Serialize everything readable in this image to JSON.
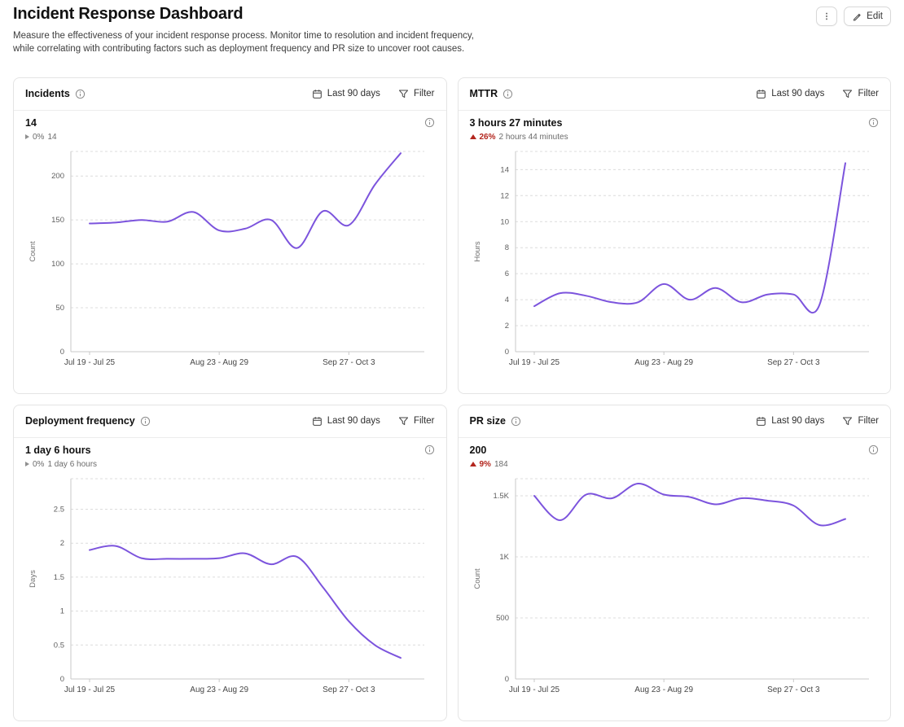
{
  "header": {
    "title": "Incident Response Dashboard",
    "description": "Measure the effectiveness of your incident response process. Monitor time to resolution and incident frequency, while correlating with contributing factors such as deployment frequency and PR size to uncover root causes.",
    "edit_label": "Edit"
  },
  "colors": {
    "accent_line": "#7c54dd",
    "negative": "#b3261e",
    "grid": "#dcdcdc",
    "axis": "#c9c9c9"
  },
  "panels": [
    {
      "title": "Incidents",
      "date_range": "Last 90 days",
      "filter_label": "Filter",
      "stat": {
        "value": "14",
        "change_direction": "neutral",
        "change_percent": "0%",
        "change_comparison": "14"
      }
    },
    {
      "title": "MTTR",
      "date_range": "Last 90 days",
      "filter_label": "Filter",
      "stat": {
        "value": "3 hours 27 minutes",
        "change_direction": "up-bad",
        "change_percent": "26%",
        "change_comparison": "2 hours 44 minutes"
      }
    },
    {
      "title": "Deployment frequency",
      "date_range": "Last 90 days",
      "filter_label": "Filter",
      "stat": {
        "value": "1 day 6 hours",
        "change_direction": "neutral",
        "change_percent": "0%",
        "change_comparison": "1 day 6 hours"
      }
    },
    {
      "title": "PR size",
      "date_range": "Last 90 days",
      "filter_label": "Filter",
      "stat": {
        "value": "200",
        "change_direction": "up-bad",
        "change_percent": "9%",
        "change_comparison": "184"
      }
    }
  ],
  "chart_data": [
    {
      "type": "line",
      "title": "Incidents",
      "ylabel": "Count",
      "x_labels": [
        "Jul 19 - Jul 25",
        "Aug 23 - Aug 29",
        "Sep 27 - Oct 3"
      ],
      "x_label_points": [
        0,
        5,
        10
      ],
      "yticks": [
        0,
        50,
        100,
        150,
        200
      ],
      "ytick_labels": [
        "0",
        "50",
        "100",
        "150",
        "200"
      ],
      "ylim": [
        0,
        228
      ],
      "values": [
        146,
        147,
        150,
        148,
        159,
        138,
        140,
        150,
        118,
        160,
        144,
        190,
        226
      ],
      "line_color": "#7c54dd",
      "grid": true,
      "legend": "none"
    },
    {
      "type": "line",
      "title": "MTTR",
      "ylabel": "Hours",
      "x_labels": [
        "Jul 19 - Jul 25",
        "Aug 23 - Aug 29",
        "Sep 27 - Oct 3"
      ],
      "x_label_points": [
        0,
        5,
        10
      ],
      "yticks": [
        0,
        2,
        4,
        6,
        8,
        10,
        12,
        14
      ],
      "ytick_labels": [
        "0",
        "2",
        "4",
        "6",
        "8",
        "10",
        "12",
        "14"
      ],
      "ylim": [
        0,
        15.4
      ],
      "values": [
        3.5,
        4.5,
        4.3,
        3.8,
        3.8,
        5.2,
        4.0,
        4.9,
        3.8,
        4.4,
        4.4,
        3.6,
        14.5
      ],
      "line_color": "#7c54dd",
      "grid": true,
      "legend": "none"
    },
    {
      "type": "line",
      "title": "Deployment frequency",
      "ylabel": "Days",
      "x_labels": [
        "Jul 19 - Jul 25",
        "Aug 23 - Aug 29",
        "Sep 27 - Oct 3"
      ],
      "x_label_points": [
        0,
        5,
        10
      ],
      "yticks": [
        0,
        0.5,
        1,
        1.5,
        2,
        2.5
      ],
      "ytick_labels": [
        "0",
        "0.5",
        "1",
        "1.5",
        "2",
        "2.5"
      ],
      "ylim": [
        0,
        2.95
      ],
      "values": [
        1.9,
        1.96,
        1.78,
        1.77,
        1.77,
        1.78,
        1.85,
        1.69,
        1.8,
        1.35,
        0.85,
        0.5,
        0.31
      ],
      "line_color": "#7c54dd",
      "grid": true,
      "legend": "none"
    },
    {
      "type": "line",
      "title": "PR size",
      "ylabel": "Count",
      "x_labels": [
        "Jul 19 - Jul 25",
        "Aug 23 - Aug 29",
        "Sep 27 - Oct 3"
      ],
      "x_label_points": [
        0,
        5,
        10
      ],
      "yticks": [
        0,
        500,
        1000,
        1500
      ],
      "ytick_labels": [
        "0",
        "500",
        "1K",
        "1.5K"
      ],
      "ylim": [
        0,
        1640
      ],
      "values": [
        1500,
        1300,
        1510,
        1480,
        1600,
        1510,
        1490,
        1430,
        1480,
        1460,
        1420,
        1260,
        1310
      ],
      "line_color": "#7c54dd",
      "grid": true,
      "legend": "none"
    }
  ]
}
